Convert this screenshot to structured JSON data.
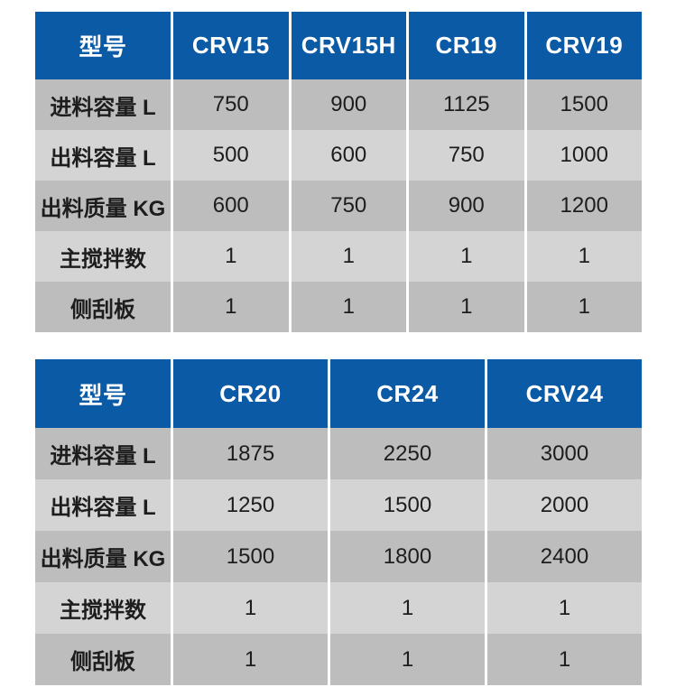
{
  "colors": {
    "page_bg": "#ffffff",
    "header_bg": "#0b5aa5",
    "header_text": "#ffffff",
    "row_dark": "#bdbdbd",
    "row_light": "#d4d4d4",
    "cell_text": "#1d1d1d",
    "separator": "#ffffff"
  },
  "chart_data": [
    {
      "type": "table",
      "columns": [
        "型号",
        "CRV15",
        "CRV15H",
        "CR19",
        "CRV19"
      ],
      "rows": [
        [
          "进料容量 L",
          "750",
          "900",
          "1125",
          "1500"
        ],
        [
          "出料容量 L",
          "500",
          "600",
          "750",
          "1000"
        ],
        [
          "出料质量 KG",
          "600",
          "750",
          "900",
          "1200"
        ],
        [
          "主搅拌数",
          "1",
          "1",
          "1",
          "1"
        ],
        [
          "侧刮板",
          "1",
          "1",
          "1",
          "1"
        ]
      ],
      "layout": {
        "header_position": "top",
        "row_striping": "alternating-gray"
      }
    },
    {
      "type": "table",
      "columns": [
        "型号",
        "CR20",
        "CR24",
        "CRV24"
      ],
      "rows": [
        [
          "进料容量 L",
          "1875",
          "2250",
          "3000"
        ],
        [
          "出料容量 L",
          "1250",
          "1500",
          "2000"
        ],
        [
          "出料质量 KG",
          "1500",
          "1800",
          "2400"
        ],
        [
          "主搅拌数",
          "1",
          "1",
          "1"
        ],
        [
          "侧刮板",
          "1",
          "1",
          "1"
        ]
      ],
      "layout": {
        "header_position": "top",
        "row_striping": "alternating-gray"
      }
    }
  ]
}
